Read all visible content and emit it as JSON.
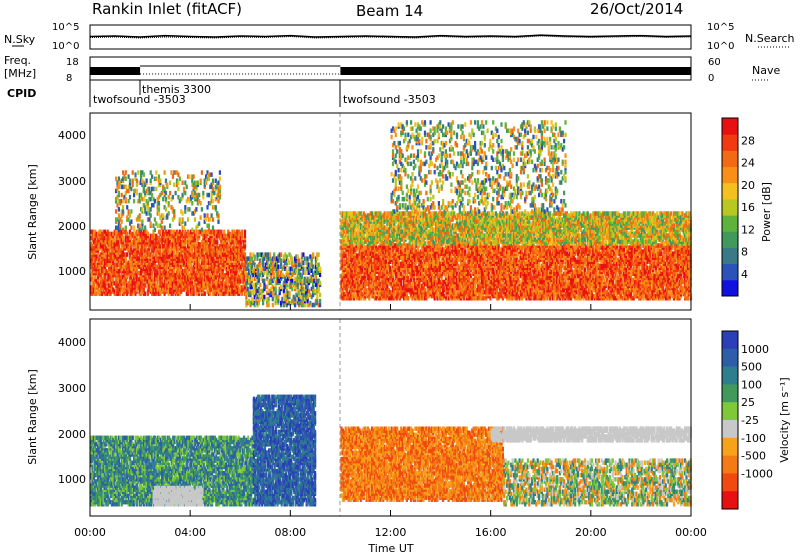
{
  "header": {
    "station": "Rankin Inlet (fitACF)",
    "beam": "Beam 14",
    "date": "26/Oct/2014"
  },
  "chart_data": [
    {
      "type": "line",
      "panel": "noise",
      "left_label": "N.Sky",
      "right_label": "N.Search",
      "y_ticks_left": [
        "10^5",
        "10^0"
      ],
      "y_ticks_right": [
        "10^5",
        "10^0"
      ],
      "xlim": [
        0,
        24
      ],
      "series": [
        {
          "values": [
            2.6,
            2.7,
            2.5,
            2.8,
            2.6,
            2.5,
            2.7,
            2.6,
            2.8,
            2.5,
            2.6,
            2.7,
            2.6,
            2.5,
            2.8,
            2.6,
            2.7,
            2.6,
            2.9,
            2.7,
            2.6,
            2.7,
            2.8,
            2.6,
            2.7
          ]
        },
        {
          "values": [
            2.4,
            2.5,
            2.3,
            2.5,
            2.4,
            2.3,
            2.5,
            2.4,
            2.6,
            2.3,
            2.4,
            2.5,
            2.4,
            2.3,
            2.6,
            2.4,
            2.5,
            2.4,
            2.7,
            2.5,
            2.4,
            2.5,
            2.6,
            2.4,
            2.5
          ]
        }
      ],
      "x": [
        0,
        1,
        2,
        3,
        4,
        5,
        6,
        7,
        8,
        9,
        10,
        11,
        12,
        13,
        14,
        15,
        16,
        17,
        18,
        19,
        20,
        21,
        22,
        23,
        24
      ]
    },
    {
      "type": "line",
      "panel": "frequency",
      "left_label": "Freq.",
      "left_unit": "[MHz]",
      "right_label": "Nave",
      "y_ticks_left": [
        "18",
        "8"
      ],
      "y_ticks_right": [
        "60",
        "0"
      ],
      "xlim": [
        0,
        24
      ],
      "gaps": [
        [
          2.0,
          10.0
        ],
        [
          9.2,
          9.3
        ]
      ],
      "values": [
        {
          "start": 0.0,
          "end": 2.0,
          "freq": 10.5
        },
        {
          "start": 2.0,
          "end": 10.0,
          "freq": 10.5,
          "style": "dotted"
        },
        {
          "start": 10.0,
          "end": 24.0,
          "freq": 10.5
        }
      ]
    },
    {
      "type": "table",
      "panel": "cpid",
      "label": "CPID",
      "segments": [
        {
          "start": 0.0,
          "label": "twofsound -3503"
        },
        {
          "start": 2.0,
          "label": "themis 3300"
        },
        {
          "start": 10.0,
          "label": "twofsound -3503"
        }
      ]
    },
    {
      "type": "heatmap",
      "panel": "power",
      "ylabel": "Slant Range [km]",
      "ylim": [
        180,
        4500
      ],
      "y_ticks": [
        1000,
        2000,
        3000,
        4000
      ],
      "xlim": [
        0,
        24
      ],
      "colorbar": {
        "label": "Power [dB]",
        "ticks": [
          4,
          8,
          12,
          16,
          20,
          24,
          28
        ],
        "range": [
          0,
          32
        ],
        "colors": [
          "#1010e0",
          "#2a52b8",
          "#3a7a86",
          "#3f9a5c",
          "#5fb23a",
          "#b8c820",
          "#f4c020",
          "#f89018",
          "#f26a14",
          "#f23a10",
          "#e81010"
        ]
      },
      "features": [
        {
          "t0": 0.0,
          "t1": 6.2,
          "r0": 500,
          "r1": 1900,
          "level": "high"
        },
        {
          "t0": 1.0,
          "t1": 5.2,
          "r0": 1900,
          "r1": 3200,
          "level": "patchy"
        },
        {
          "t0": 6.2,
          "t1": 9.2,
          "r0": 250,
          "r1": 1400,
          "level": "mixed"
        },
        {
          "t0": 10.0,
          "t1": 24.0,
          "r0": 400,
          "r1": 1600,
          "level": "high"
        },
        {
          "t0": 10.0,
          "t1": 24.0,
          "r0": 1600,
          "r1": 2300,
          "level": "medium"
        },
        {
          "t0": 12.0,
          "t1": 19.0,
          "r0": 2300,
          "r1": 4300,
          "level": "patchy"
        }
      ]
    },
    {
      "type": "heatmap",
      "panel": "velocity",
      "ylabel": "Slant Range [km]",
      "xlabel": "Time UT",
      "ylim": [
        180,
        4500
      ],
      "y_ticks": [
        1000,
        2000,
        3000,
        4000
      ],
      "xlim": [
        0,
        24
      ],
      "x_ticks": [
        "00:00",
        "04:00",
        "08:00",
        "12:00",
        "16:00",
        "20:00",
        "00:00"
      ],
      "colorbar": {
        "label": "Velocity [m s⁻¹]",
        "ticks": [
          "1000",
          "500",
          "100",
          "25",
          "-25",
          "-100",
          "-500",
          "-1000"
        ],
        "colors": [
          "#2a3fb8",
          "#2f5ea8",
          "#2f7e8e",
          "#3f9a5c",
          "#7fc83a",
          "#c8c8c8",
          "#f6a21a",
          "#f47a14",
          "#f04a10",
          "#e81010"
        ]
      },
      "features": [
        {
          "t0": 0.0,
          "t1": 6.5,
          "r0": 400,
          "r1": 1900,
          "level": "positive"
        },
        {
          "t0": 2.5,
          "t1": 4.5,
          "r0": 400,
          "r1": 800,
          "level": "near-zero"
        },
        {
          "t0": 6.5,
          "t1": 9.0,
          "r0": 400,
          "r1": 2800,
          "level": "strong-positive"
        },
        {
          "t0": 10.0,
          "t1": 16.5,
          "r0": 500,
          "r1": 2100,
          "level": "negative"
        },
        {
          "t0": 16.5,
          "t1": 24.0,
          "r0": 400,
          "r1": 1400,
          "level": "mixed"
        },
        {
          "t0": 16.0,
          "t1": 24.0,
          "r0": 1800,
          "r1": 2100,
          "level": "near-zero"
        }
      ]
    }
  ]
}
